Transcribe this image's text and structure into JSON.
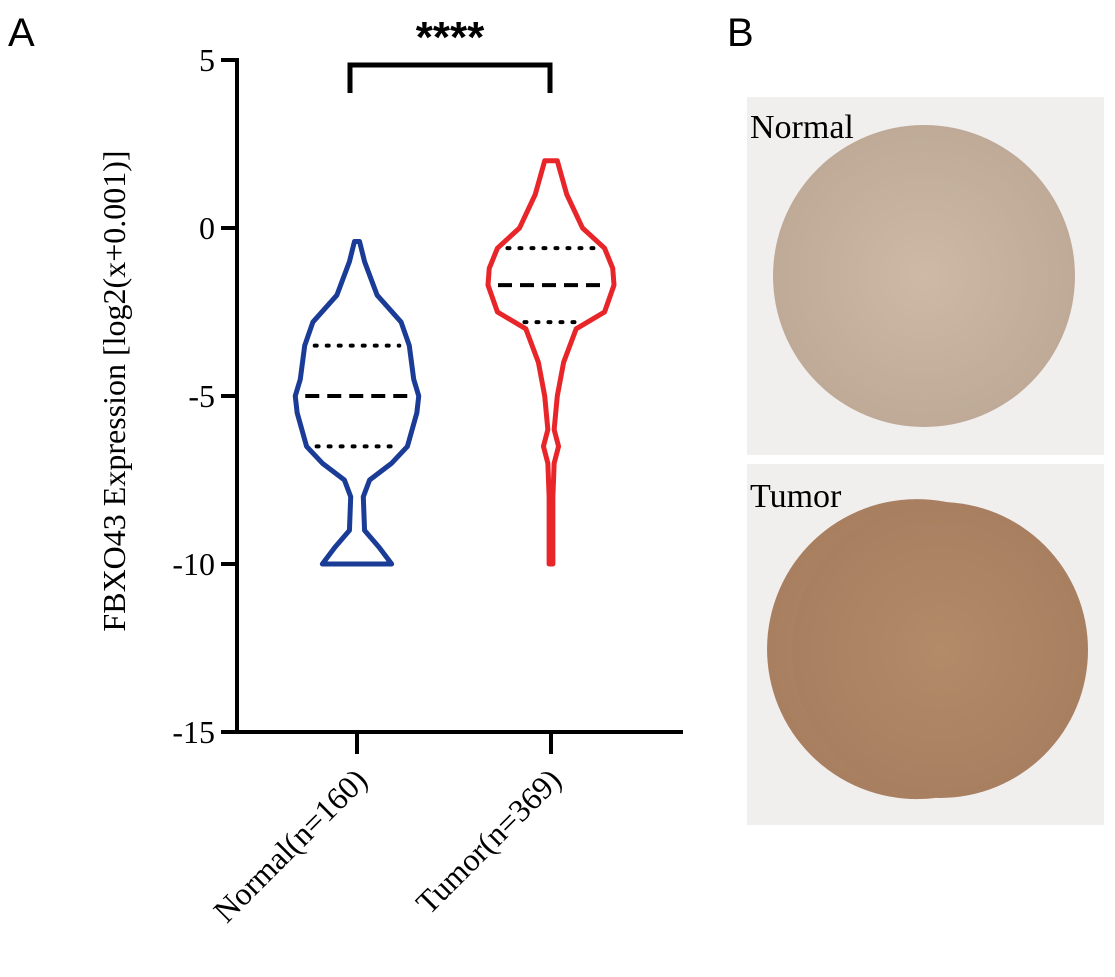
{
  "panel_labels": [
    "A",
    "B"
  ],
  "chart_data": {
    "type": "violin",
    "y_label": "FBXO43 Expression [log2(x+0.001)]",
    "categories": [
      "Normal(n=160)",
      "Tumor(n=369)"
    ],
    "ylim": [
      -15,
      5
    ],
    "yticks": [
      -15,
      -10,
      -5,
      0,
      5
    ],
    "significance": "****",
    "violins": [
      {
        "color": "#1a3c96",
        "q1": -6.5,
        "median": -5,
        "q3": -3.5,
        "density_y": [
          -0.4,
          -1,
          -2,
          -2.8,
          -3.5,
          -4.5,
          -5,
          -5.5,
          -6.5,
          -7,
          -7.5,
          -8,
          -9,
          -9.5,
          -10
        ],
        "density_width": [
          0.04,
          0.12,
          0.32,
          0.7,
          0.83,
          0.9,
          0.98,
          0.95,
          0.8,
          0.55,
          0.2,
          0.1,
          0.12,
          0.35,
          0.55
        ]
      },
      {
        "color": "#e8262a",
        "q1": -2.8,
        "median": -1.7,
        "q3": -0.6,
        "density_y": [
          2,
          1,
          0,
          -0.6,
          -1.2,
          -1.7,
          -2.5,
          -3,
          -4,
          -5,
          -6,
          -6.5,
          -7,
          -8,
          -10
        ],
        "density_width": [
          0.1,
          0.25,
          0.5,
          0.85,
          0.98,
          1.0,
          0.85,
          0.4,
          0.2,
          0.1,
          0.05,
          0.12,
          0.05,
          0.03,
          0.03
        ]
      }
    ]
  },
  "panel_b": {
    "images": [
      {
        "label": "Normal"
      },
      {
        "label": "Tumor"
      }
    ]
  }
}
